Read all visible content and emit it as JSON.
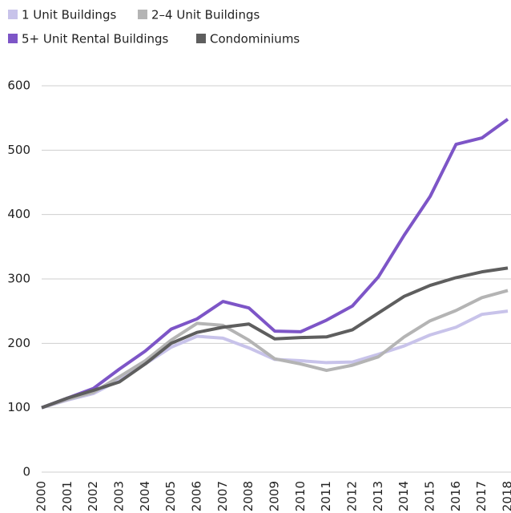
{
  "chart_data": {
    "type": "line",
    "x": [
      "2000",
      "2001",
      "2002",
      "2003",
      "2004",
      "2005",
      "2006",
      "2007",
      "2008",
      "2009",
      "2010",
      "2011",
      "2012",
      "2013",
      "2014",
      "2015",
      "2016",
      "2017",
      "2018"
    ],
    "series": [
      {
        "name": "1 Unit Buildings",
        "color": "#c8c3ea",
        "values": [
          100,
          112,
          122,
          143,
          168,
          194,
          211,
          208,
          193,
          175,
          173,
          170,
          171,
          183,
          196,
          213,
          225,
          245,
          250
        ]
      },
      {
        "name": "2–4 Unit Buildings",
        "color": "#b4b4b4",
        "values": [
          100,
          113,
          124,
          148,
          173,
          205,
          231,
          228,
          205,
          176,
          168,
          158,
          166,
          179,
          210,
          235,
          251,
          271,
          282
        ]
      },
      {
        "name": "5+ Unit Rental Buildings",
        "color": "#7d55c7",
        "values": [
          100,
          115,
          130,
          160,
          188,
          222,
          238,
          265,
          255,
          219,
          218,
          236,
          258,
          303,
          368,
          428,
          509,
          519,
          548
        ]
      },
      {
        "name": "Condominiums",
        "color": "#5e5e5e",
        "values": [
          100,
          115,
          127,
          140,
          168,
          200,
          217,
          225,
          230,
          207,
          209,
          210,
          221,
          247,
          273,
          290,
          302,
          311,
          317
        ]
      }
    ],
    "ylim": [
      0,
      600
    ],
    "yticks": [
      0,
      100,
      200,
      300,
      400,
      500,
      600
    ],
    "grid": true,
    "legend": "top-left"
  }
}
